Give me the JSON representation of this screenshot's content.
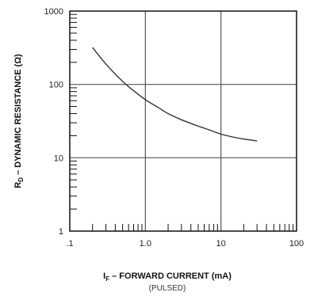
{
  "chart_data": {
    "type": "line",
    "x_scale": "log",
    "y_scale": "log",
    "xlim": [
      0.1,
      100
    ],
    "ylim": [
      1,
      1000
    ],
    "x_tick_labels": [
      ".1",
      "1.0",
      "10",
      "100"
    ],
    "x_tick_values": [
      0.1,
      1,
      10,
      100
    ],
    "y_tick_labels": [
      "1",
      "10",
      "100",
      "1000"
    ],
    "y_tick_values": [
      1,
      10,
      100,
      1000
    ],
    "ylabel_main": "R",
    "ylabel_sub": "D",
    "ylabel_rest": " – DYNAMIC RESISTANCE (Ω)",
    "xlabel_main": "I",
    "xlabel_sub": "F",
    "xlabel_rest": " – FORWARD CURRENT (mA)",
    "xlabel_note": "(PULSED)",
    "grid": "major",
    "series": [
      {
        "x": [
          0.2,
          0.3,
          0.5,
          0.7,
          1.0,
          1.5,
          2,
          3,
          5,
          7,
          10,
          15,
          20,
          30
        ],
        "y": [
          320,
          190,
          110,
          82,
          62,
          48,
          40,
          33,
          27,
          24,
          21,
          19,
          18,
          17
        ]
      }
    ],
    "colors": {
      "line": "#333333",
      "grid": "#555555",
      "axis": "#111111"
    }
  }
}
